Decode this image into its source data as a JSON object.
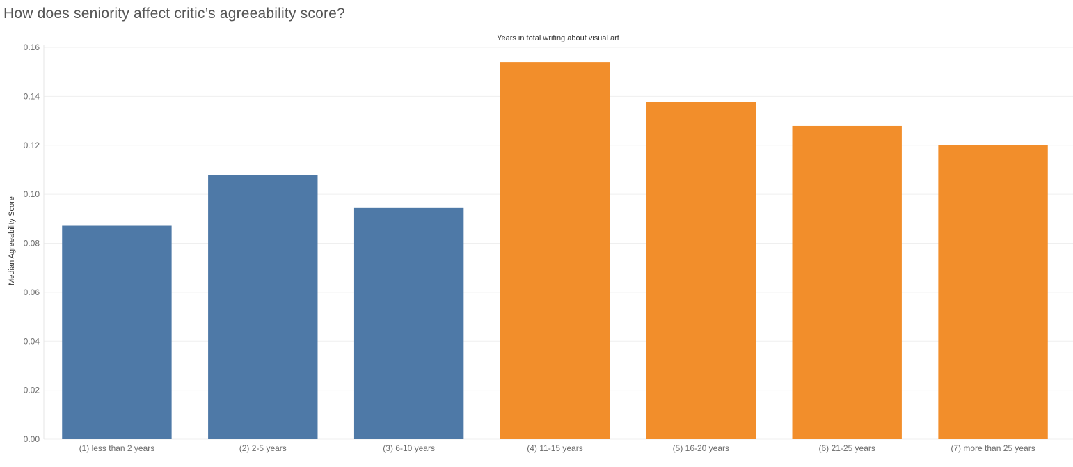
{
  "page": {
    "title": "How does seniority affect critic’s agreeability score?"
  },
  "chart_data": {
    "type": "bar",
    "title": "How does seniority affect critic’s agreeability score?",
    "xlabel": "Years in total writing about visual art",
    "ylabel": "Median Agreeability Score",
    "ylim": [
      0,
      0.16
    ],
    "yticks": [
      "0.00",
      "0.02",
      "0.04",
      "0.06",
      "0.08",
      "0.10",
      "0.12",
      "0.14",
      "0.16"
    ],
    "grid": true,
    "legend": "none",
    "categories": [
      "(1) less than 2 years",
      "(2) 2-5 years",
      "(3) 6-10 years",
      "(4) 11-15 years",
      "(5) 16-20 years",
      "(6) 21-25 years",
      "(7) more than 25 years"
    ],
    "values": [
      0.0871,
      0.1078,
      0.0944,
      0.154,
      0.1378,
      0.1279,
      0.1202
    ],
    "colors": [
      "#4e79a7",
      "#4e79a7",
      "#4e79a7",
      "#f28e2b",
      "#f28e2b",
      "#f28e2b",
      "#f28e2b"
    ]
  }
}
